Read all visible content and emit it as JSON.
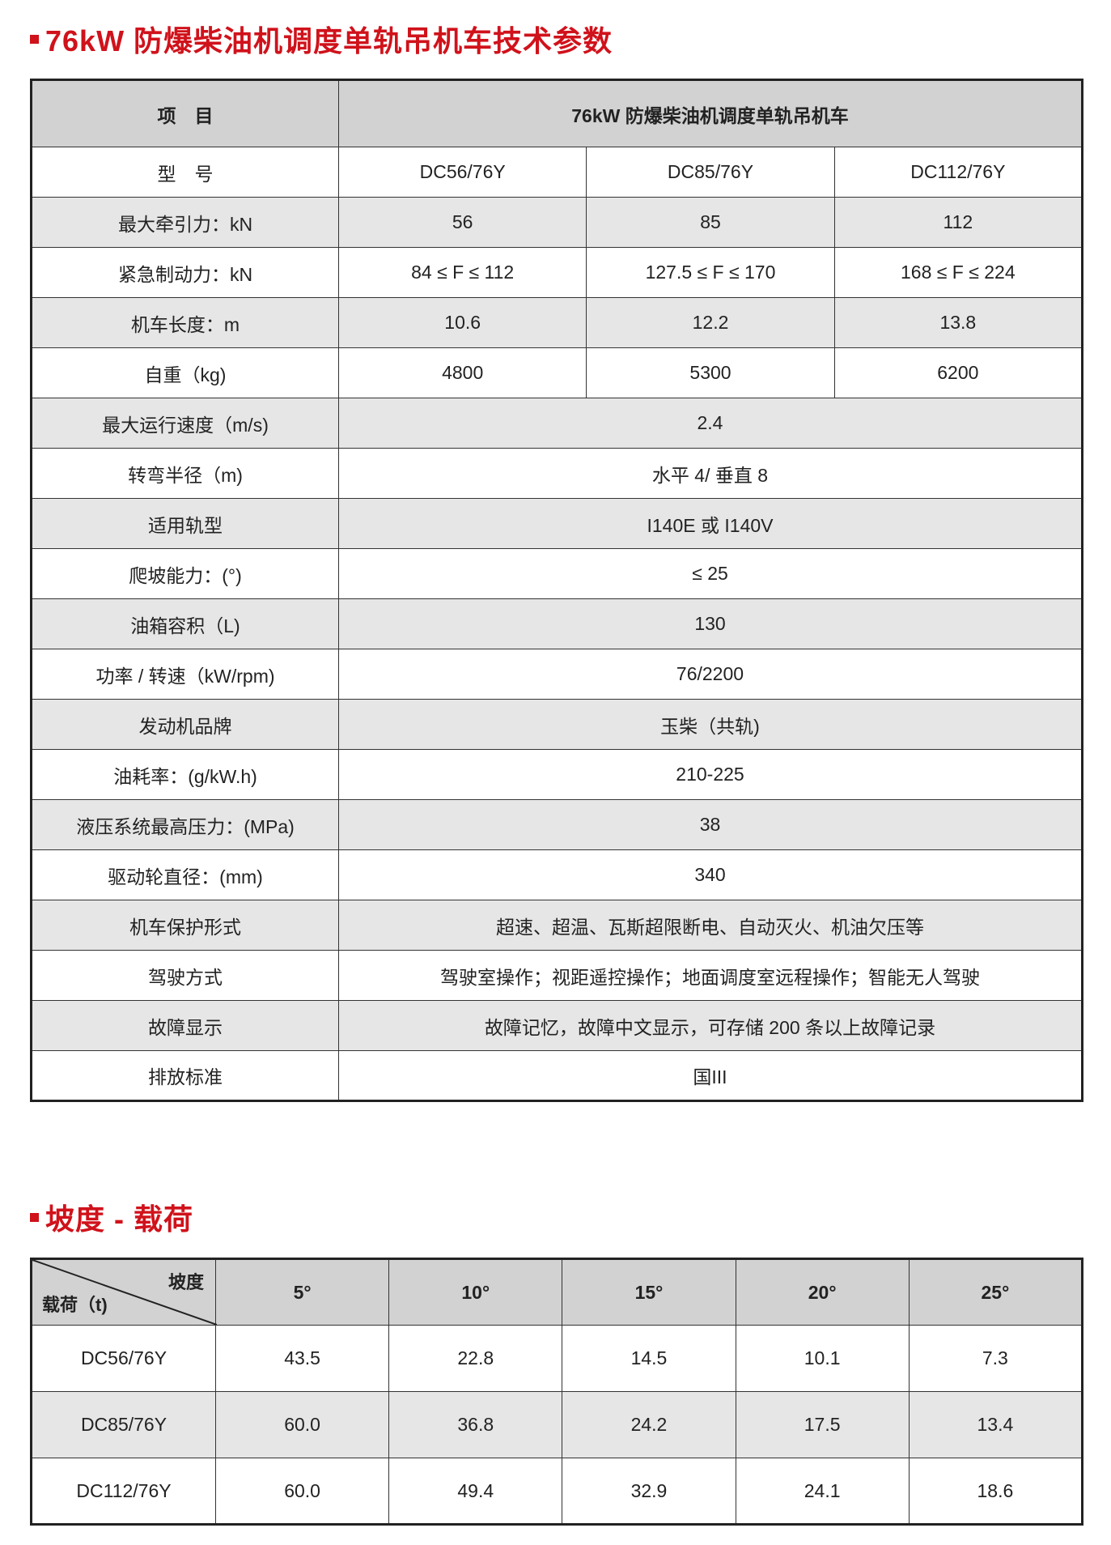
{
  "section1": {
    "title": "76kW 防爆柴油机调度单轨吊机车技术参数",
    "header": {
      "item": "项　目",
      "product": "76kW 防爆柴油机调度单轨吊机车"
    },
    "rows": [
      {
        "label": "型　号",
        "values": [
          "DC56/76Y",
          "DC85/76Y",
          "DC112/76Y"
        ]
      },
      {
        "label": "最大牵引力：kN",
        "values": [
          "56",
          "85",
          "112"
        ]
      },
      {
        "label": "紧急制动力：kN",
        "values": [
          "84 ≤ F ≤ 112",
          "127.5 ≤ F ≤ 170",
          "168 ≤ F ≤ 224"
        ]
      },
      {
        "label": "机车长度：m",
        "values": [
          "10.6",
          "12.2",
          "13.8"
        ]
      },
      {
        "label": "自重（kg)",
        "values": [
          "4800",
          "5300",
          "6200"
        ]
      },
      {
        "label": "最大运行速度（m/s)",
        "value": "2.4"
      },
      {
        "label": "转弯半径（m)",
        "value": "水平 4/ 垂直 8"
      },
      {
        "label": "适用轨型",
        "value": "I140E 或 I140V"
      },
      {
        "label": "爬坡能力：(°)",
        "value": "≤ 25"
      },
      {
        "label": "油箱容积（L)",
        "value": "130"
      },
      {
        "label": "功率 / 转速（kW/rpm)",
        "value": "76/2200"
      },
      {
        "label": "发动机品牌",
        "value": "玉柴（共轨)"
      },
      {
        "label": "油耗率：(g/kW.h)",
        "value": "210-225"
      },
      {
        "label": "液压系统最高压力：(MPa)",
        "value": "38"
      },
      {
        "label": "驱动轮直径：(mm)",
        "value": "340"
      },
      {
        "label": "机车保护形式",
        "value": "超速、超温、瓦斯超限断电、自动灭火、机油欠压等"
      },
      {
        "label": "驾驶方式",
        "value": "驾驶室操作；视距遥控操作；地面调度室远程操作；智能无人驾驶"
      },
      {
        "label": "故障显示",
        "value": "故障记忆，故障中文显示，可存储 200 条以上故障记录"
      },
      {
        "label": "排放标准",
        "value": "国III"
      }
    ]
  },
  "section2": {
    "title": "坡度 - 载荷",
    "corner": {
      "top": "坡度",
      "bottom": "载荷（t)"
    },
    "columns": [
      "5°",
      "10°",
      "15°",
      "20°",
      "25°"
    ],
    "rows": [
      {
        "model": "DC56/76Y",
        "values": [
          "43.5",
          "22.8",
          "14.5",
          "10.1",
          "7.3"
        ]
      },
      {
        "model": "DC85/76Y",
        "values": [
          "60.0",
          "36.8",
          "24.2",
          "17.5",
          "13.4"
        ]
      },
      {
        "model": "DC112/76Y",
        "values": [
          "60.0",
          "49.4",
          "32.9",
          "24.1",
          "18.6"
        ]
      }
    ]
  },
  "colors": {
    "accent": "#d0121b",
    "header_bg": "#d2d2d2",
    "alt_row_bg": "#e6e6e6"
  }
}
